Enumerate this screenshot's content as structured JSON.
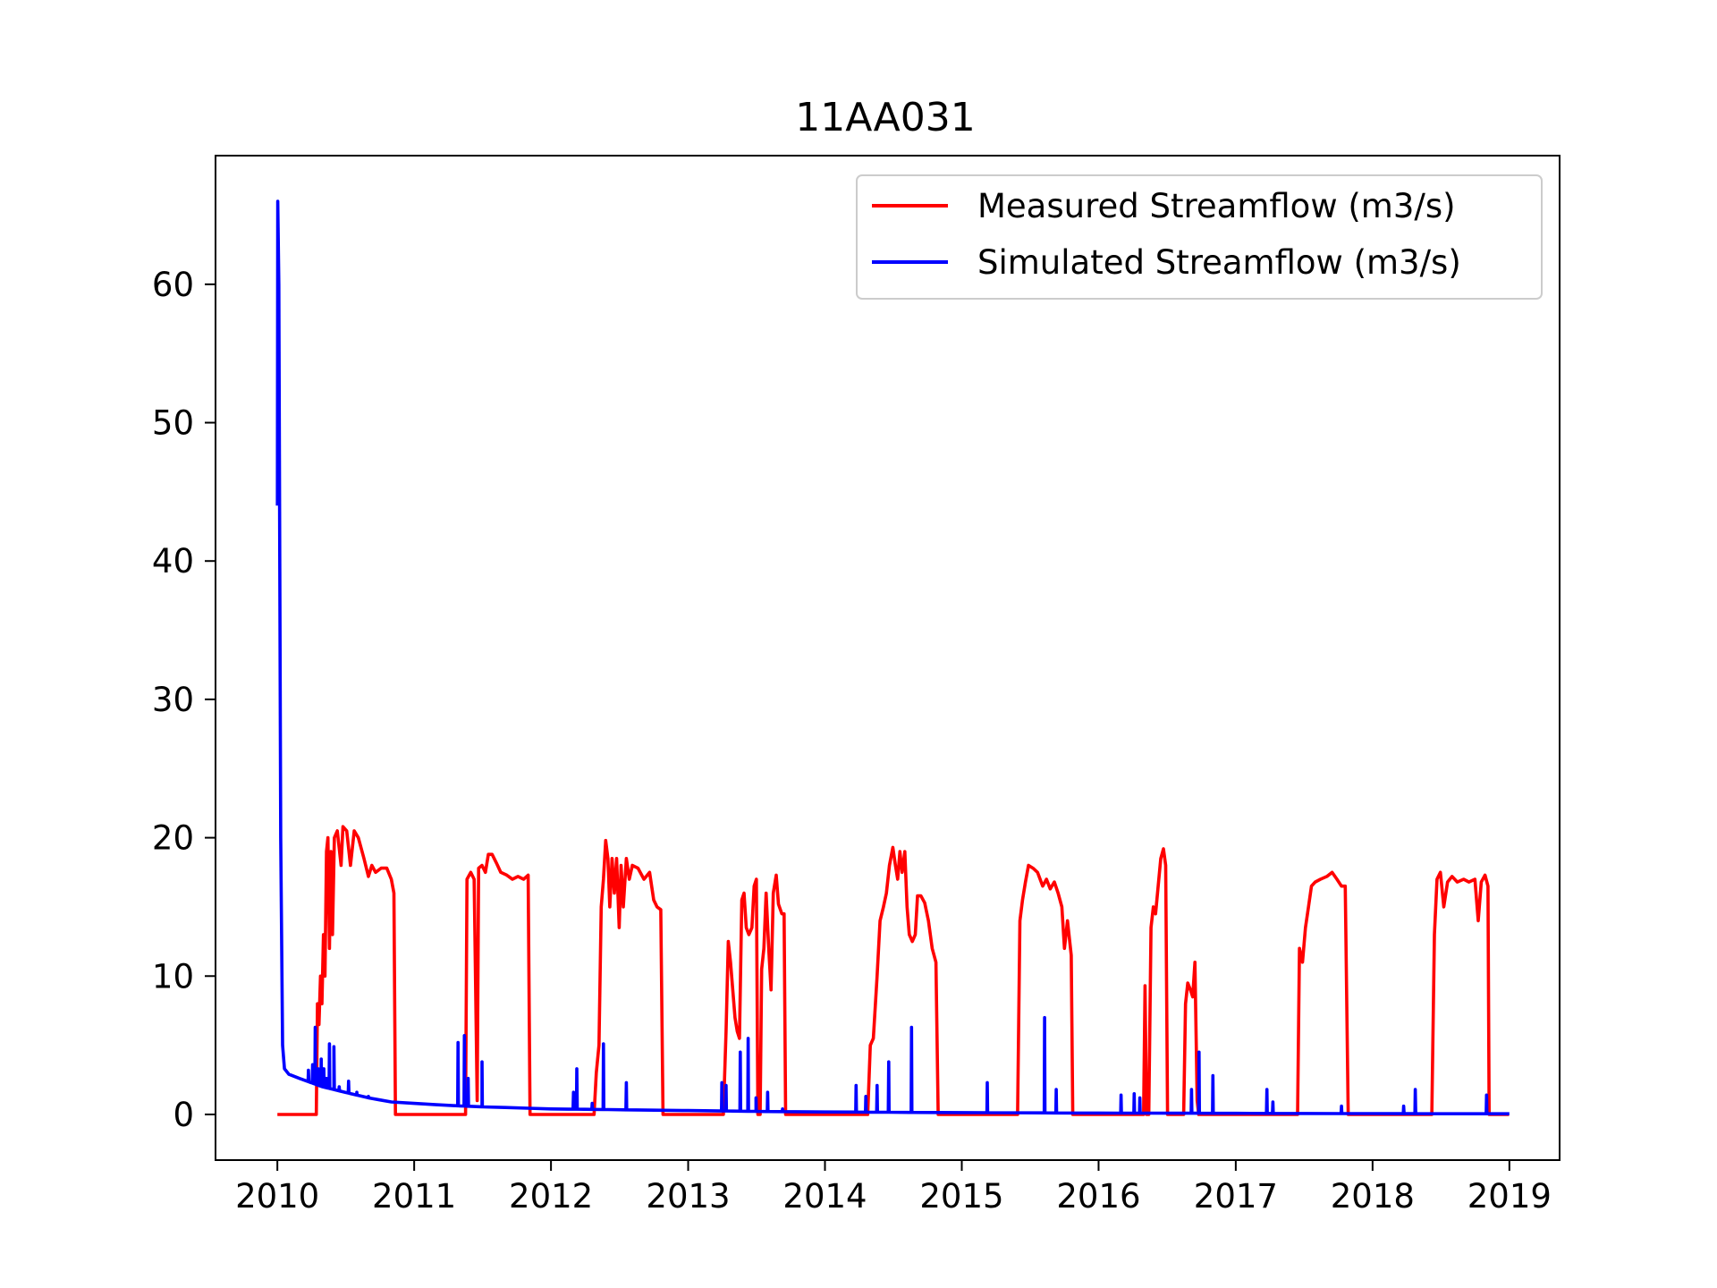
{
  "chart_data": {
    "type": "line",
    "title": "11AA031",
    "xlabel": "",
    "ylabel": "",
    "xlim": [
      "2009-07-20",
      "2019-05-15"
    ],
    "ylim": [
      -3.3,
      69.3
    ],
    "x_ticks": [
      "2010",
      "2011",
      "2012",
      "2013",
      "2014",
      "2015",
      "2016",
      "2017",
      "2018",
      "2019"
    ],
    "y_ticks": [
      0,
      10,
      20,
      30,
      40,
      50,
      60
    ],
    "grid": false,
    "legend_position": "upper right",
    "series": [
      {
        "name": "Measured Streamflow (m3/s)",
        "color": "#ff0000",
        "points": [
          [
            "2010-01-01",
            0
          ],
          [
            "2010-04-15",
            0
          ],
          [
            "2010-04-18",
            8
          ],
          [
            "2010-04-22",
            6.5
          ],
          [
            "2010-04-26",
            10
          ],
          [
            "2010-04-30",
            8
          ],
          [
            "2010-05-04",
            13
          ],
          [
            "2010-05-08",
            10
          ],
          [
            "2010-05-12",
            19
          ],
          [
            "2010-05-16",
            20
          ],
          [
            "2010-05-20",
            12
          ],
          [
            "2010-05-24",
            19
          ],
          [
            "2010-05-28",
            13
          ],
          [
            "2010-06-02",
            20
          ],
          [
            "2010-06-10",
            20.5
          ],
          [
            "2010-06-20",
            18
          ],
          [
            "2010-06-25",
            20.8
          ],
          [
            "2010-07-05",
            20.5
          ],
          [
            "2010-07-15",
            18
          ],
          [
            "2010-07-25",
            20.5
          ],
          [
            "2010-08-05",
            20
          ],
          [
            "2010-08-20",
            18.5
          ],
          [
            "2010-09-01",
            17.2
          ],
          [
            "2010-09-10",
            18
          ],
          [
            "2010-09-20",
            17.5
          ],
          [
            "2010-10-05",
            17.8
          ],
          [
            "2010-10-20",
            17.8
          ],
          [
            "2010-11-01",
            17
          ],
          [
            "2010-11-08",
            16
          ],
          [
            "2010-11-12",
            0
          ],
          [
            "2011-05-18",
            0
          ],
          [
            "2011-05-22",
            17
          ],
          [
            "2011-06-01",
            17.5
          ],
          [
            "2011-06-10",
            17
          ],
          [
            "2011-06-18",
            1
          ],
          [
            "2011-06-22",
            17.8
          ],
          [
            "2011-07-01",
            18
          ],
          [
            "2011-07-10",
            17.5
          ],
          [
            "2011-07-18",
            18.8
          ],
          [
            "2011-07-28",
            18.8
          ],
          [
            "2011-08-08",
            18.2
          ],
          [
            "2011-08-20",
            17.5
          ],
          [
            "2011-09-05",
            17.3
          ],
          [
            "2011-09-20",
            17
          ],
          [
            "2011-10-05",
            17.2
          ],
          [
            "2011-10-20",
            17
          ],
          [
            "2011-11-01",
            17.3
          ],
          [
            "2011-11-06",
            0
          ],
          [
            "2012-04-25",
            0
          ],
          [
            "2012-05-01",
            3
          ],
          [
            "2012-05-08",
            5
          ],
          [
            "2012-05-14",
            15
          ],
          [
            "2012-05-20",
            17
          ],
          [
            "2012-05-26",
            19.8
          ],
          [
            "2012-06-01",
            18.5
          ],
          [
            "2012-06-06",
            15
          ],
          [
            "2012-06-12",
            18.5
          ],
          [
            "2012-06-18",
            16
          ],
          [
            "2012-06-24",
            18.5
          ],
          [
            "2012-07-01",
            13.5
          ],
          [
            "2012-07-06",
            18
          ],
          [
            "2012-07-12",
            15
          ],
          [
            "2012-07-20",
            18.5
          ],
          [
            "2012-07-28",
            17
          ],
          [
            "2012-08-05",
            18
          ],
          [
            "2012-08-20",
            17.8
          ],
          [
            "2012-09-05",
            17
          ],
          [
            "2012-09-20",
            17.5
          ],
          [
            "2012-10-01",
            15.5
          ],
          [
            "2012-10-10",
            15
          ],
          [
            "2012-10-20",
            14.8
          ],
          [
            "2012-10-26",
            0
          ],
          [
            "2013-04-05",
            0
          ],
          [
            "2013-04-12",
            6
          ],
          [
            "2013-04-18",
            12.5
          ],
          [
            "2013-04-24",
            11
          ],
          [
            "2013-04-30",
            9
          ],
          [
            "2013-05-06",
            7
          ],
          [
            "2013-05-12",
            6
          ],
          [
            "2013-05-18",
            5.5
          ],
          [
            "2013-05-24",
            15.5
          ],
          [
            "2013-05-30",
            16
          ],
          [
            "2013-06-05",
            13.5
          ],
          [
            "2013-06-12",
            13
          ],
          [
            "2013-06-20",
            13.5
          ],
          [
            "2013-06-26",
            16.5
          ],
          [
            "2013-07-02",
            17
          ],
          [
            "2013-07-06",
            0
          ],
          [
            "2013-07-12",
            0
          ],
          [
            "2013-07-16",
            10.5
          ],
          [
            "2013-07-22",
            12
          ],
          [
            "2013-07-28",
            16
          ],
          [
            "2013-08-04",
            12
          ],
          [
            "2013-08-10",
            9
          ],
          [
            "2013-08-16",
            16
          ],
          [
            "2013-08-24",
            17.3
          ],
          [
            "2013-08-30",
            15.2
          ],
          [
            "2013-09-08",
            14.5
          ],
          [
            "2013-09-14",
            14.5
          ],
          [
            "2013-09-18",
            0
          ],
          [
            "2014-04-25",
            0
          ],
          [
            "2014-05-02",
            5
          ],
          [
            "2014-05-10",
            5.5
          ],
          [
            "2014-05-20",
            10
          ],
          [
            "2014-05-28",
            14
          ],
          [
            "2014-06-06",
            15
          ],
          [
            "2014-06-14",
            16
          ],
          [
            "2014-06-22",
            18
          ],
          [
            "2014-07-01",
            19.3
          ],
          [
            "2014-07-08",
            18
          ],
          [
            "2014-07-14",
            17
          ],
          [
            "2014-07-20",
            19
          ],
          [
            "2014-07-26",
            17.5
          ],
          [
            "2014-08-02",
            19
          ],
          [
            "2014-08-08",
            15
          ],
          [
            "2014-08-14",
            13
          ],
          [
            "2014-08-22",
            12.5
          ],
          [
            "2014-08-30",
            13
          ],
          [
            "2014-09-05",
            15.8
          ],
          [
            "2014-09-14",
            15.8
          ],
          [
            "2014-09-24",
            15.3
          ],
          [
            "2014-10-04",
            14
          ],
          [
            "2014-10-14",
            12
          ],
          [
            "2014-10-24",
            11
          ],
          [
            "2014-10-30",
            0
          ],
          [
            "2015-05-30",
            0
          ],
          [
            "2015-06-05",
            14
          ],
          [
            "2015-06-12",
            15.5
          ],
          [
            "2015-06-20",
            16.8
          ],
          [
            "2015-06-28",
            18
          ],
          [
            "2015-07-10",
            17.8
          ],
          [
            "2015-07-22",
            17.5
          ],
          [
            "2015-08-05",
            16.5
          ],
          [
            "2015-08-15",
            17
          ],
          [
            "2015-08-25",
            16.3
          ],
          [
            "2015-09-05",
            16.8
          ],
          [
            "2015-09-15",
            16
          ],
          [
            "2015-09-25",
            15
          ],
          [
            "2015-10-02",
            12
          ],
          [
            "2015-10-10",
            14
          ],
          [
            "2015-10-20",
            11.5
          ],
          [
            "2015-10-24",
            0
          ],
          [
            "2016-04-30",
            0
          ],
          [
            "2016-05-04",
            9.3
          ],
          [
            "2016-05-08",
            0
          ],
          [
            "2016-05-14",
            0
          ],
          [
            "2016-05-20",
            13.5
          ],
          [
            "2016-05-26",
            15
          ],
          [
            "2016-06-01",
            14.5
          ],
          [
            "2016-06-08",
            16.5
          ],
          [
            "2016-06-15",
            18.5
          ],
          [
            "2016-06-22",
            19.2
          ],
          [
            "2016-06-28",
            18
          ],
          [
            "2016-07-03",
            0
          ],
          [
            "2016-08-15",
            0
          ],
          [
            "2016-08-20",
            8
          ],
          [
            "2016-08-26",
            9.5
          ],
          [
            "2016-09-02",
            9
          ],
          [
            "2016-09-08",
            8.5
          ],
          [
            "2016-09-14",
            11
          ],
          [
            "2016-09-20",
            1
          ],
          [
            "2016-09-24",
            0
          ],
          [
            "2017-06-15",
            0
          ],
          [
            "2017-06-20",
            12
          ],
          [
            "2017-06-28",
            11
          ],
          [
            "2017-07-06",
            13.5
          ],
          [
            "2017-07-14",
            15
          ],
          [
            "2017-07-22",
            16.5
          ],
          [
            "2017-08-01",
            16.8
          ],
          [
            "2017-08-15",
            17
          ],
          [
            "2017-09-01",
            17.2
          ],
          [
            "2017-09-15",
            17.5
          ],
          [
            "2017-09-28",
            17
          ],
          [
            "2017-10-10",
            16.5
          ],
          [
            "2017-10-20",
            16.5
          ],
          [
            "2017-10-28",
            0
          ],
          [
            "2018-06-08",
            0
          ],
          [
            "2018-06-15",
            13
          ],
          [
            "2018-06-22",
            17
          ],
          [
            "2018-07-01",
            17.5
          ],
          [
            "2018-07-10",
            15
          ],
          [
            "2018-07-20",
            16.8
          ],
          [
            "2018-08-01",
            17.2
          ],
          [
            "2018-08-15",
            16.8
          ],
          [
            "2018-09-01",
            17
          ],
          [
            "2018-09-15",
            16.8
          ],
          [
            "2018-10-01",
            17
          ],
          [
            "2018-10-10",
            14
          ],
          [
            "2018-10-18",
            16.8
          ],
          [
            "2018-10-28",
            17.3
          ],
          [
            "2018-11-05",
            16.5
          ],
          [
            "2018-11-08",
            0
          ],
          [
            "2018-12-31",
            0
          ]
        ]
      },
      {
        "name": "Simulated Streamflow (m3/s)",
        "color": "#0000ff",
        "base_flow": [
          [
            "2010-01-01",
            44
          ],
          [
            "2010-01-02",
            66
          ],
          [
            "2010-01-05",
            60
          ],
          [
            "2010-01-10",
            20
          ],
          [
            "2010-01-15",
            5
          ],
          [
            "2010-01-20",
            3.3
          ],
          [
            "2010-02-01",
            2.9
          ],
          [
            "2010-03-01",
            2.6
          ],
          [
            "2010-04-01",
            2.3
          ],
          [
            "2010-05-01",
            2
          ],
          [
            "2010-06-01",
            1.8
          ],
          [
            "2010-07-01",
            1.6
          ],
          [
            "2010-08-01",
            1.4
          ],
          [
            "2010-09-01",
            1.2
          ],
          [
            "2010-10-01",
            1.05
          ],
          [
            "2010-11-01",
            0.9
          ],
          [
            "2011-01-01",
            0.8
          ],
          [
            "2011-03-01",
            0.7
          ],
          [
            "2011-05-01",
            0.62
          ],
          [
            "2011-07-01",
            0.55
          ],
          [
            "2011-09-01",
            0.5
          ],
          [
            "2011-11-01",
            0.45
          ],
          [
            "2012-01-01",
            0.4
          ],
          [
            "2012-06-01",
            0.35
          ],
          [
            "2013-01-01",
            0.28
          ],
          [
            "2013-07-01",
            0.22
          ],
          [
            "2014-01-01",
            0.18
          ],
          [
            "2015-01-01",
            0.13
          ],
          [
            "2016-01-01",
            0.1
          ],
          [
            "2017-01-01",
            0.08
          ],
          [
            "2018-01-01",
            0.06
          ],
          [
            "2019-01-01",
            0.05
          ]
        ],
        "spikes": [
          [
            "2010-03-25",
            3.2
          ],
          [
            "2010-04-05",
            3.6
          ],
          [
            "2010-04-12",
            6.3
          ],
          [
            "2010-04-20",
            3.3
          ],
          [
            "2010-04-28",
            4
          ],
          [
            "2010-05-05",
            3.3
          ],
          [
            "2010-05-12",
            2.6
          ],
          [
            "2010-05-20",
            5.1
          ],
          [
            "2010-06-01",
            4.9
          ],
          [
            "2010-06-15",
            2
          ],
          [
            "2010-07-10",
            2.4
          ],
          [
            "2010-08-01",
            1.6
          ],
          [
            "2010-09-01",
            1.3
          ],
          [
            "2011-04-28",
            5.2
          ],
          [
            "2011-05-15",
            5.7
          ],
          [
            "2011-05-25",
            2.6
          ],
          [
            "2011-07-01",
            3.8
          ],
          [
            "2012-03-01",
            1.6
          ],
          [
            "2012-03-10",
            3.3
          ],
          [
            "2012-04-20",
            0.8
          ],
          [
            "2012-05-20",
            5.1
          ],
          [
            "2012-07-20",
            2.3
          ],
          [
            "2013-04-01",
            2.3
          ],
          [
            "2013-04-12",
            2.1
          ],
          [
            "2013-05-20",
            4.5
          ],
          [
            "2013-06-10",
            5.5
          ],
          [
            "2013-07-01",
            1.2
          ],
          [
            "2013-08-01",
            1.6
          ],
          [
            "2013-09-10",
            0.4
          ],
          [
            "2014-03-25",
            2.1
          ],
          [
            "2014-04-20",
            1.3
          ],
          [
            "2014-05-20",
            2.1
          ],
          [
            "2014-06-20",
            3.8
          ],
          [
            "2014-08-20",
            6.3
          ],
          [
            "2015-03-10",
            2.3
          ],
          [
            "2015-08-10",
            7
          ],
          [
            "2015-09-10",
            1.8
          ],
          [
            "2016-03-01",
            1.4
          ],
          [
            "2016-04-05",
            1.5
          ],
          [
            "2016-04-20",
            1.2
          ],
          [
            "2016-09-05",
            1.8
          ],
          [
            "2016-09-25",
            4.5
          ],
          [
            "2016-11-01",
            2.8
          ],
          [
            "2017-03-25",
            1.8
          ],
          [
            "2017-04-10",
            0.9
          ],
          [
            "2017-10-10",
            0.6
          ],
          [
            "2018-03-25",
            0.6
          ],
          [
            "2018-04-25",
            1.8
          ],
          [
            "2018-11-01",
            1.4
          ]
        ]
      }
    ]
  }
}
